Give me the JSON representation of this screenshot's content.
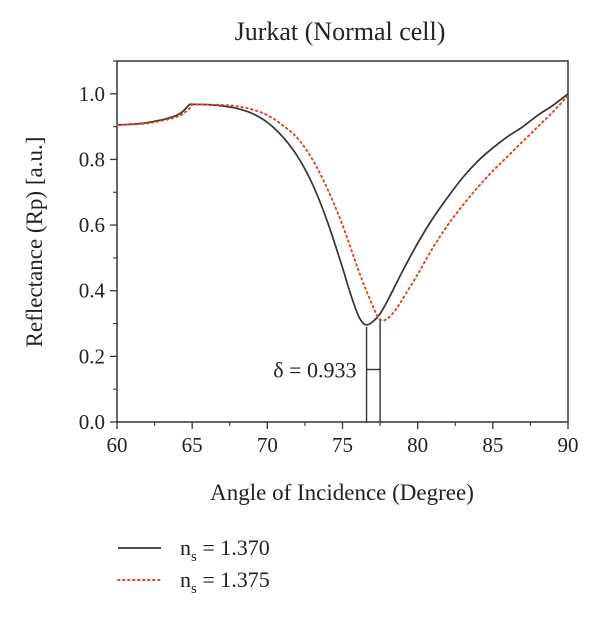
{
  "chart_data": {
    "type": "line",
    "title": "Jurkat (Normal cell)",
    "xlabel": "Angle of Incidence (Degree)",
    "ylabel": "Reflectance (Rp) [a.u.]",
    "xlim": [
      60,
      90
    ],
    "ylim": [
      0.0,
      1.1
    ],
    "xticks": [
      "60",
      "65",
      "70",
      "75",
      "80",
      "85",
      "90"
    ],
    "yticks": [
      "0.0",
      "0.2",
      "0.4",
      "0.6",
      "0.8",
      "1.0"
    ],
    "grid": false,
    "legend_position": "bottom-left, below plot",
    "series": [
      {
        "name": "n_s = 1.370",
        "legend_prefix": "n",
        "legend_sub": "s",
        "legend_value": " = 1.370",
        "color": "#333333",
        "style": "solid",
        "x": [
          60,
          62,
          64,
          64.8,
          65,
          66,
          67,
          68,
          69,
          70,
          71,
          72,
          73,
          74,
          75,
          75.5,
          76,
          76.3,
          76.6,
          77,
          77.5,
          78,
          79,
          80,
          81,
          82,
          83,
          84,
          85,
          86,
          87,
          88,
          89,
          90
        ],
        "y": [
          0.905,
          0.912,
          0.935,
          0.966,
          0.968,
          0.967,
          0.963,
          0.955,
          0.94,
          0.913,
          0.87,
          0.81,
          0.725,
          0.61,
          0.47,
          0.395,
          0.33,
          0.305,
          0.296,
          0.305,
          0.33,
          0.37,
          0.46,
          0.545,
          0.62,
          0.685,
          0.745,
          0.795,
          0.835,
          0.87,
          0.9,
          0.935,
          0.965,
          1.0
        ]
      },
      {
        "name": "n_s = 1.375",
        "legend_prefix": "n",
        "legend_sub": "s",
        "legend_value": " = 1.375",
        "color": "#e8401c",
        "style": "dotted",
        "x": [
          60,
          62,
          64,
          64.8,
          65,
          66,
          67,
          68,
          69,
          70,
          71,
          72,
          73,
          74,
          75,
          76,
          76.5,
          77,
          77.3,
          77.6,
          78,
          78.5,
          79,
          80,
          81,
          82,
          83,
          84,
          85,
          86,
          87,
          88,
          89,
          90
        ],
        "y": [
          0.905,
          0.91,
          0.93,
          0.955,
          0.966,
          0.967,
          0.966,
          0.962,
          0.952,
          0.935,
          0.905,
          0.865,
          0.8,
          0.71,
          0.6,
          0.47,
          0.41,
          0.355,
          0.325,
          0.31,
          0.315,
          0.34,
          0.375,
          0.45,
          0.53,
          0.6,
          0.66,
          0.715,
          0.765,
          0.81,
          0.855,
          0.9,
          0.945,
          0.995
        ]
      }
    ],
    "annotations": [
      {
        "text": "δ = 0.933",
        "markers_x": [
          76.6,
          77.5
        ],
        "y_top": 0.296,
        "y_bracket": 0.16
      }
    ]
  }
}
